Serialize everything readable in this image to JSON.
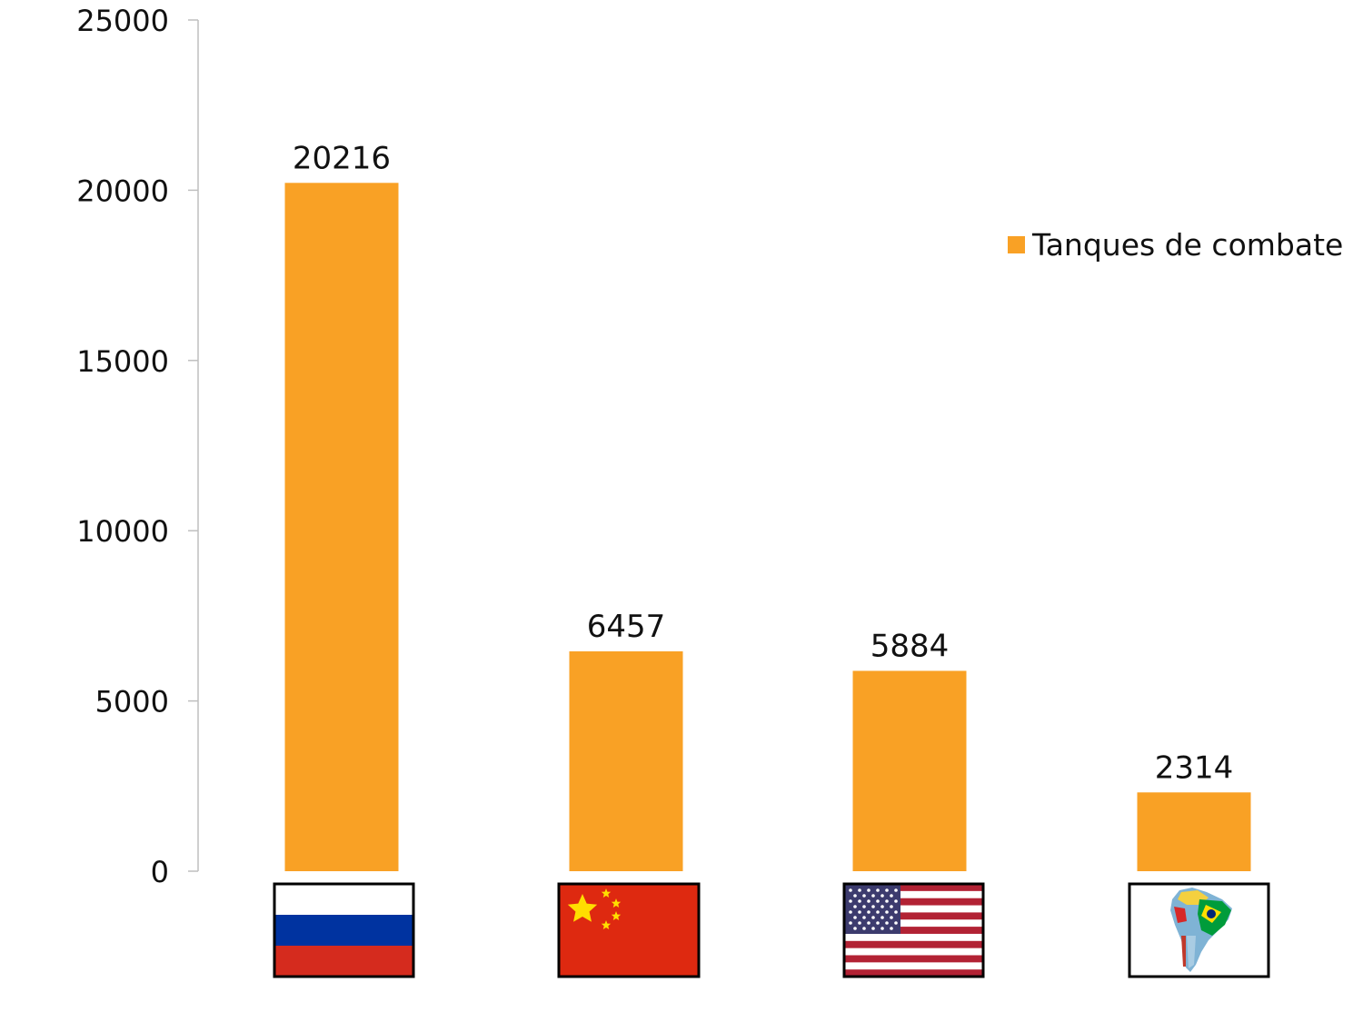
{
  "chart_data": {
    "type": "bar",
    "categories": [
      "Russia",
      "China",
      "United States",
      "South America"
    ],
    "category_icons": [
      "russia-flag-icon",
      "china-flag-icon",
      "usa-flag-icon",
      "south-america-map-icon"
    ],
    "series": [
      {
        "name": "Tanques de combate",
        "values": [
          20216,
          6457,
          5884,
          2314
        ],
        "color": "#F9A125"
      }
    ],
    "ylim": [
      0,
      25000
    ],
    "yticks": [
      0,
      5000,
      10000,
      15000,
      20000,
      25000
    ],
    "data_labels": [
      "20216",
      "6457",
      "5884",
      "2314"
    ],
    "legend_position": "right",
    "grid": false,
    "title": "",
    "xlabel": "",
    "ylabel": ""
  }
}
